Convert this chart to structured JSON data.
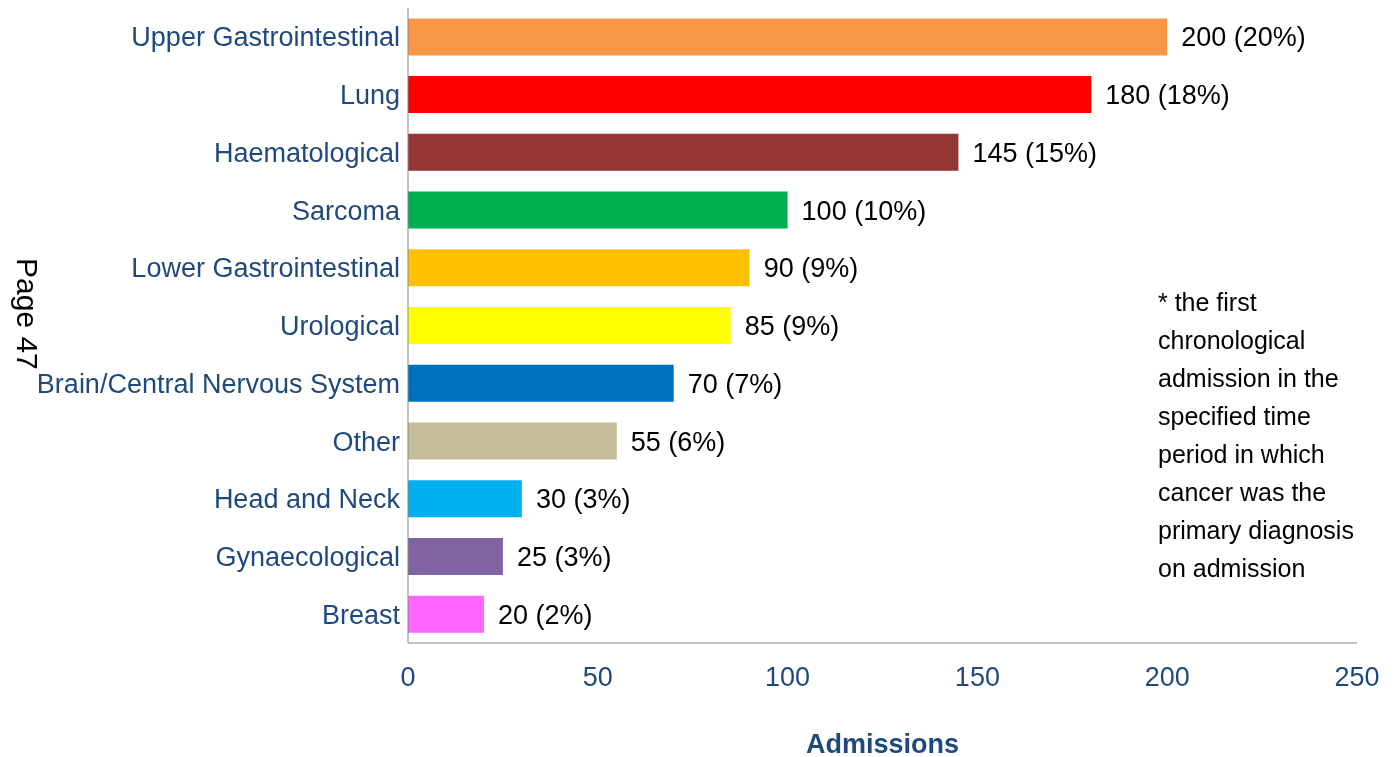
{
  "chart_data": {
    "type": "bar",
    "orientation": "horizontal",
    "categories": [
      "Upper Gastrointestinal",
      "Lung",
      "Haematological",
      "Sarcoma",
      "Lower Gastrointestinal",
      "Urological",
      "Brain/Central Nervous System",
      "Other",
      "Head and Neck",
      "Gynaecological",
      "Breast"
    ],
    "values": [
      200,
      180,
      145,
      100,
      90,
      85,
      70,
      55,
      30,
      25,
      20
    ],
    "colors": [
      "#f79646",
      "#ff0000",
      "#943634",
      "#00b050",
      "#ffc000",
      "#ffff00",
      "#0070c0",
      "#c4bd97",
      "#00b0f0",
      "#8064a2",
      "#ff66ff"
    ],
    "value_labels": [
      "200 (20%)",
      "180 (18%)",
      "145 (15%)",
      "100 (10%)",
      "90 (9%)",
      "85 (9%)",
      "70 (7%)",
      "55 (6%)",
      "30 (3%)",
      "25 (3%)",
      "20 (2%)"
    ],
    "xlim": [
      0,
      250
    ],
    "xticks": [
      0,
      50,
      100,
      150,
      200,
      250
    ],
    "xlabel": "Admissions",
    "grid": false,
    "legend": false,
    "annotations": [
      "* the first chronological admission in the specified time period in which cancer was the primary diagnosis on admission",
      "Page 47"
    ]
  }
}
